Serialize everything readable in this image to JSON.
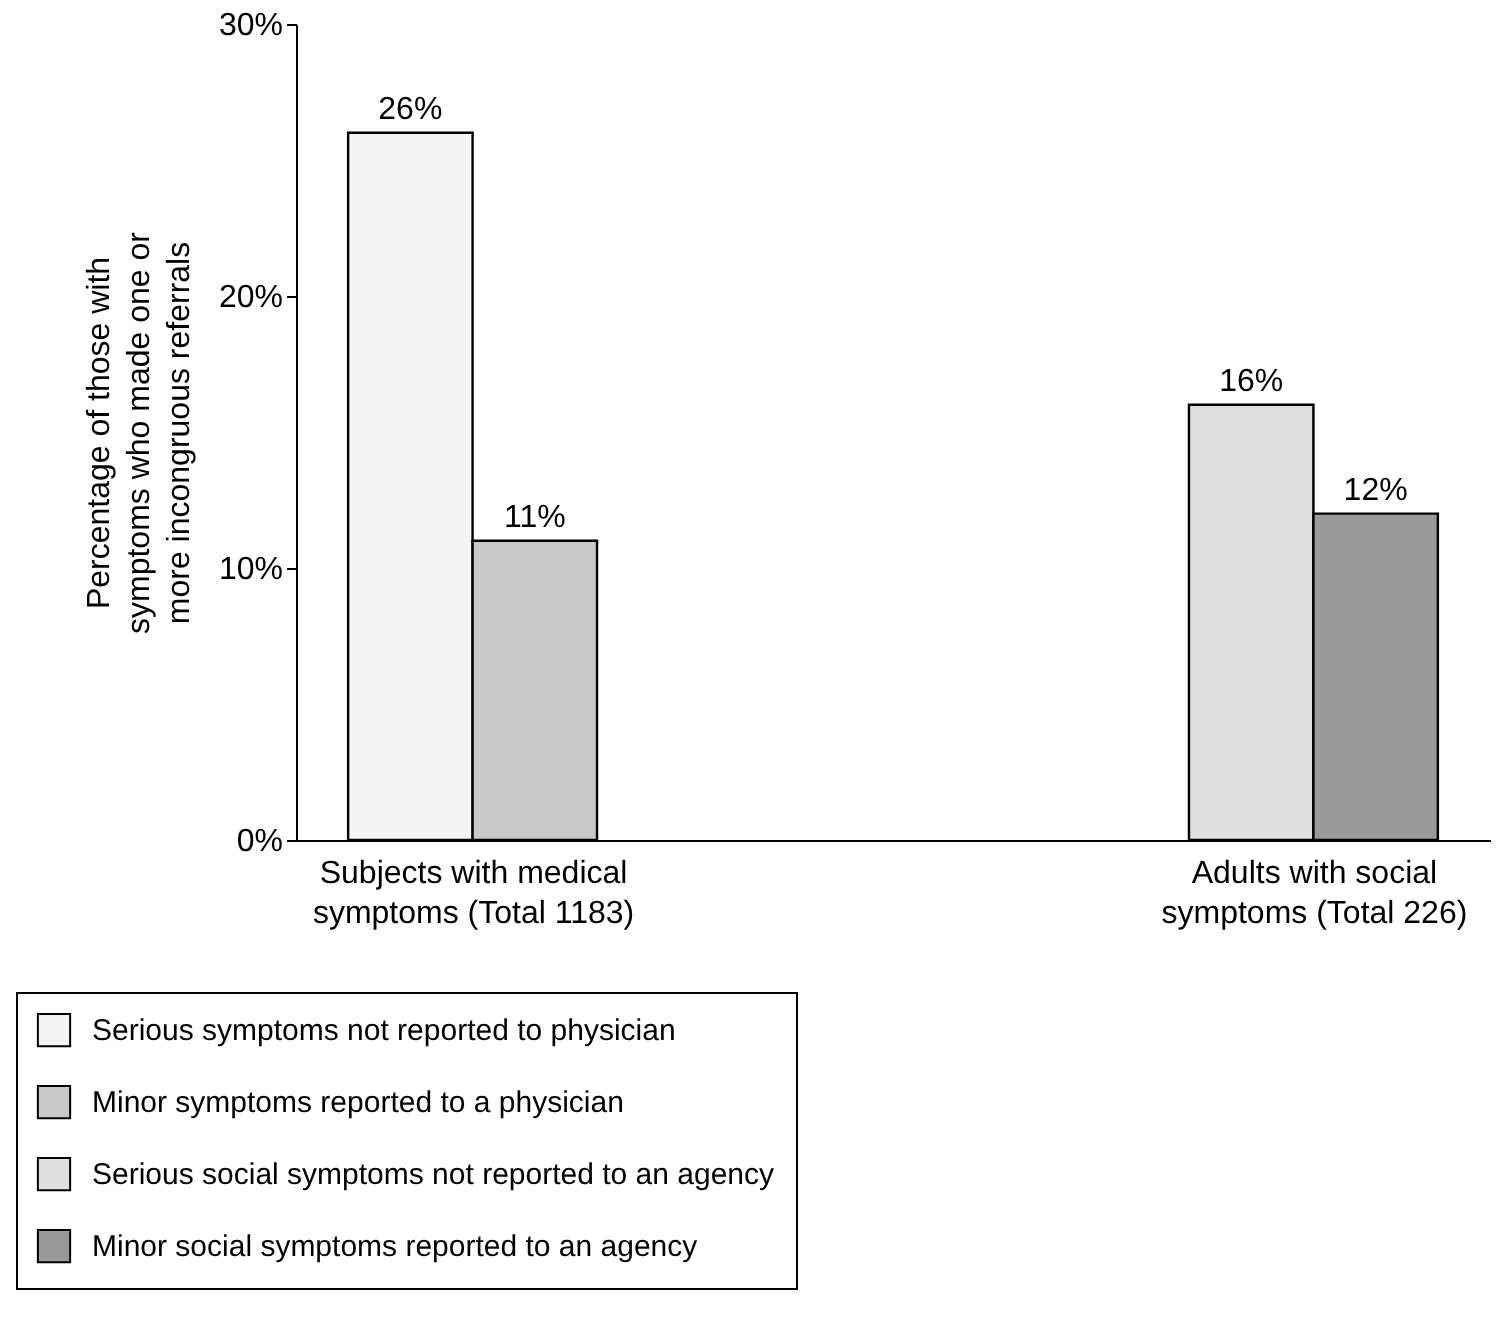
{
  "chart_data": {
    "type": "bar",
    "categories": [
      "Subjects with medical symptoms (Total 1183)",
      "Adults with social symptoms (Total 226)"
    ],
    "ylabel": "Percentage of those with symptoms who made one or more incongruous referrals",
    "ylim": [
      0,
      30
    ],
    "yticks": [
      {
        "value": 0,
        "label": "0%"
      },
      {
        "value": 10,
        "label": "10%"
      },
      {
        "value": 20,
        "label": "20%"
      },
      {
        "value": 30,
        "label": "30%"
      }
    ],
    "grid": false,
    "legend": "bottom left",
    "series": [
      {
        "name": "Serious symptoms not reported to physician",
        "color": "#f4f4f4",
        "values": [
          26,
          null
        ],
        "value_labels": [
          "26%",
          null
        ]
      },
      {
        "name": "Minor symptoms reported to a physician",
        "color": "#c8c8c8",
        "values": [
          11,
          null
        ],
        "value_labels": [
          "11%",
          null
        ]
      },
      {
        "name": "Serious social symptoms not reported to an agency",
        "color": "#e0e0e0",
        "values": [
          null,
          16
        ],
        "value_labels": [
          null,
          "16%"
        ]
      },
      {
        "name": "Minor social symptoms reported to an agency",
        "color": "#9a9a9a",
        "values": [
          null,
          12
        ],
        "value_labels": [
          null,
          "12%"
        ]
      }
    ]
  }
}
